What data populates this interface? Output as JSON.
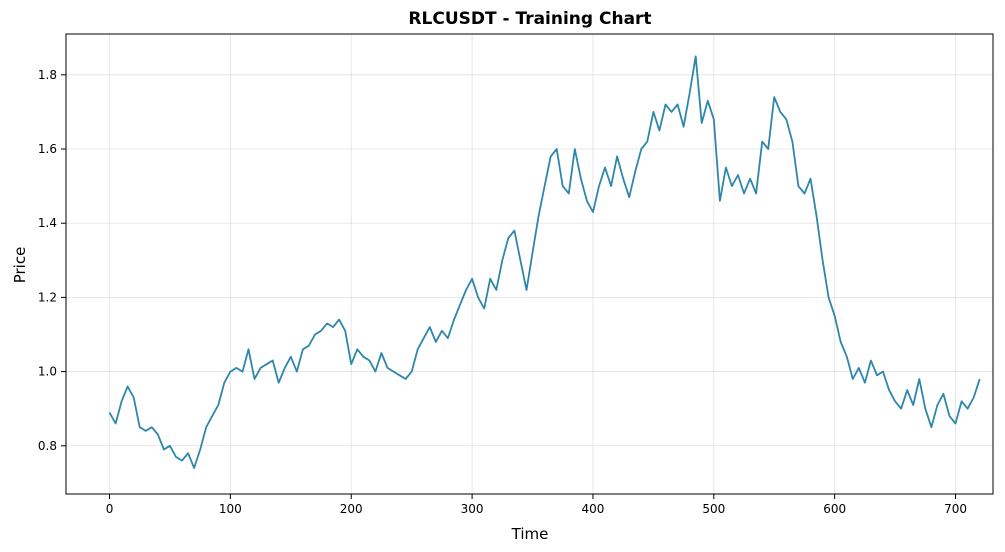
{
  "chart_data": {
    "type": "line",
    "title": "RLCUSDT - Training Chart",
    "xlabel": "Time",
    "ylabel": "Price",
    "xlim": [
      -36,
      731
    ],
    "ylim": [
      0.67,
      1.91
    ],
    "xticks": [
      0,
      100,
      200,
      300,
      400,
      500,
      600,
      700
    ],
    "yticks": [
      0.8,
      1.0,
      1.2,
      1.4,
      1.6,
      1.8
    ],
    "ytick_labels": [
      "0.8",
      "1.0",
      "1.2",
      "1.4",
      "1.6",
      "1.8"
    ],
    "grid": true,
    "line_color": "#2e86ab",
    "series": [
      {
        "x": [
          0,
          5,
          10,
          15,
          20,
          25,
          30,
          35,
          40,
          45,
          50,
          55,
          60,
          65,
          70,
          75,
          80,
          85,
          90,
          95,
          100,
          105,
          110,
          115,
          120,
          125,
          130,
          135,
          140,
          145,
          150,
          155,
          160,
          165,
          170,
          175,
          180,
          185,
          190,
          195,
          200,
          205,
          210,
          215,
          220,
          225,
          230,
          235,
          240,
          245,
          250,
          255,
          260,
          265,
          270,
          275,
          280,
          285,
          290,
          295,
          300,
          305,
          310,
          315,
          320,
          325,
          330,
          335,
          340,
          345,
          350,
          355,
          360,
          365,
          370,
          375,
          380,
          385,
          390,
          395,
          400,
          405,
          410,
          415,
          420,
          425,
          430,
          435,
          440,
          445,
          450,
          455,
          460,
          465,
          470,
          475,
          480,
          485,
          490,
          495,
          500,
          505,
          510,
          515,
          520,
          525,
          530,
          535,
          540,
          545,
          550,
          555,
          560,
          565,
          570,
          575,
          580,
          585,
          590,
          595,
          600,
          605,
          610,
          615,
          620,
          625,
          630,
          635,
          640,
          645,
          650,
          655,
          660,
          665,
          670,
          675,
          680,
          685,
          690,
          695,
          700,
          705,
          710,
          715,
          720
        ],
        "values": [
          0.89,
          0.86,
          0.92,
          0.96,
          0.93,
          0.85,
          0.84,
          0.85,
          0.83,
          0.79,
          0.8,
          0.77,
          0.76,
          0.78,
          0.74,
          0.79,
          0.85,
          0.88,
          0.91,
          0.97,
          1.0,
          1.01,
          1.0,
          1.06,
          0.98,
          1.01,
          1.02,
          1.03,
          0.97,
          1.01,
          1.04,
          1.0,
          1.06,
          1.07,
          1.1,
          1.11,
          1.13,
          1.12,
          1.14,
          1.11,
          1.02,
          1.06,
          1.04,
          1.03,
          1.0,
          1.05,
          1.01,
          1.0,
          0.99,
          0.98,
          1.0,
          1.06,
          1.09,
          1.12,
          1.08,
          1.11,
          1.09,
          1.14,
          1.18,
          1.22,
          1.25,
          1.2,
          1.17,
          1.25,
          1.22,
          1.3,
          1.36,
          1.38,
          1.3,
          1.22,
          1.32,
          1.42,
          1.5,
          1.58,
          1.6,
          1.5,
          1.48,
          1.6,
          1.52,
          1.46,
          1.43,
          1.5,
          1.55,
          1.5,
          1.58,
          1.52,
          1.47,
          1.54,
          1.6,
          1.62,
          1.7,
          1.65,
          1.72,
          1.7,
          1.72,
          1.66,
          1.75,
          1.85,
          1.67,
          1.73,
          1.68,
          1.46,
          1.55,
          1.5,
          1.53,
          1.48,
          1.52,
          1.48,
          1.62,
          1.6,
          1.74,
          1.7,
          1.68,
          1.62,
          1.5,
          1.48,
          1.52,
          1.42,
          1.3,
          1.2,
          1.15,
          1.08,
          1.04,
          0.98,
          1.01,
          0.97,
          1.03,
          0.99,
          1.0,
          0.95,
          0.92,
          0.9,
          0.95,
          0.91,
          0.98,
          0.9,
          0.85,
          0.91,
          0.94,
          0.88,
          0.86,
          0.92,
          0.9,
          0.93,
          0.98
        ]
      }
    ]
  }
}
